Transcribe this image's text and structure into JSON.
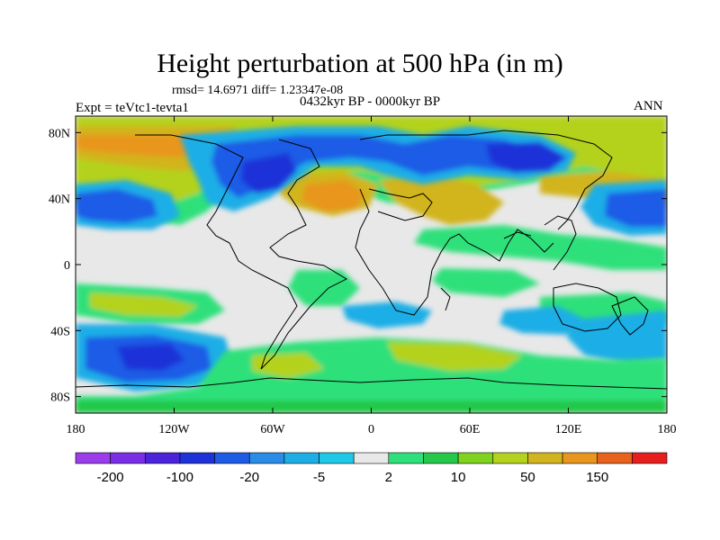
{
  "header": {
    "title": "Height perturbation at 500 hPa (in m)",
    "stats": "rmsd= 14.6971 diff= 1.23347e-08",
    "period": "0432kyr BP - 0000kyr BP",
    "experiment": "Expt = teVtc1-tevta1",
    "season": "ANN"
  },
  "map": {
    "lon_ticks": [
      "180",
      "120W",
      "60W",
      "0",
      "60E",
      "120E",
      "180"
    ],
    "lat_ticks": [
      "80N",
      "40N",
      "0",
      "40S",
      "80S"
    ],
    "colors": {
      "neutral": "#e8e8e8",
      "coastline": "#000000"
    }
  },
  "colorbar": {
    "labels": [
      "-200",
      "-100",
      "-20",
      "-5",
      "2",
      "10",
      "50",
      "150"
    ],
    "colors": [
      "#9b3dea",
      "#7a2ee6",
      "#4a23db",
      "#1d32d8",
      "#1e5ce6",
      "#2a8ce6",
      "#1eaee6",
      "#1ec8e6",
      "#e8e8e8",
      "#2ee07a",
      "#24c84a",
      "#7fd21e",
      "#b4d21e",
      "#d2b41e",
      "#e8961e",
      "#e8621e",
      "#e81e1e"
    ]
  }
}
